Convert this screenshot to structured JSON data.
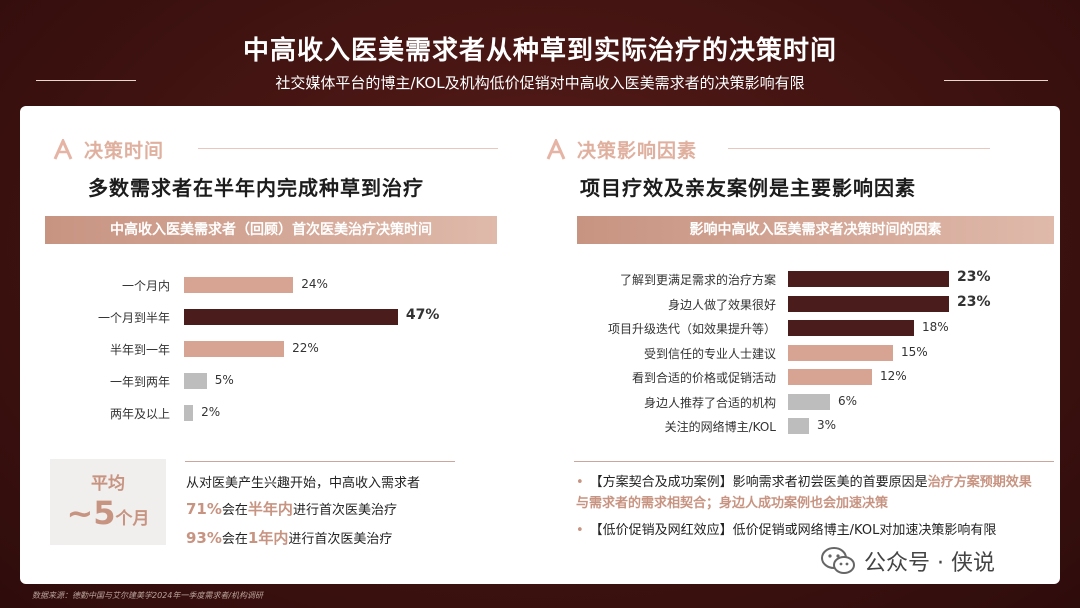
{
  "header": {
    "title": "中高收入医美需求者从种草到实际治疗的决策时间",
    "subtitle": "社交媒体平台的博主/KOL及机构低价促销对中高收入医美需求者的决策影响有限"
  },
  "left": {
    "section_label": "决策时间",
    "headline": "多数需求者在半年内完成种草到治疗",
    "band": "中高收入医美需求者（回顾）首次医美治疗决策时间",
    "average": {
      "line1": "平均",
      "big": "~5",
      "unit": "个月"
    },
    "notes": {
      "line1": "从对医美产生兴趣开始，中高收入需求者",
      "line2_pct": "71%",
      "line2_a": "会在",
      "line2_hl": "半年内",
      "line2_b": "进行首次医美治疗",
      "line3_pct": "93%",
      "line3_a": "会在",
      "line3_hl": "1年内",
      "line3_b": "进行首次医美治疗"
    }
  },
  "right": {
    "section_label": "决策影响因素",
    "headline": "项目疗效及亲友案例是主要影响因素",
    "band": "影响中高收入医美需求者决策时间的因素",
    "bullets": {
      "b1_a": "【方案契合及成功案例】影响需求者初尝医美的首要原因是",
      "b1_hl1": "治疗方案预期效果与需求者的需求相契合；身边人成功案例也会加速决策",
      "b2": "【低价促销及网红效应】低价促销或网络博主/KOL对加速决策影响有限"
    }
  },
  "chart_data": [
    {
      "type": "bar",
      "orientation": "horizontal",
      "categories": [
        "一个月内",
        "一个月到半年",
        "半年到一年",
        "一年到两年",
        "两年及以上"
      ],
      "values": [
        24,
        47,
        22,
        5,
        2
      ],
      "value_labels": [
        "24%",
        "47%",
        "22%",
        "5%",
        "2%"
      ],
      "colors": [
        "#d7a392",
        "#4a1c1c",
        "#d7a392",
        "#bdbdbd",
        "#bdbdbd"
      ],
      "unit": "%"
    },
    {
      "type": "bar",
      "orientation": "horizontal",
      "categories": [
        "了解到更满足需求的治疗方案",
        "身边人做了效果很好",
        "项目升级迭代（如效果提升等）",
        "受到信任的专业人士建议",
        "看到合适的价格或促销活动",
        "身边人推荐了合适的机构",
        "关注的网络博主/KOL"
      ],
      "values": [
        23,
        23,
        18,
        15,
        12,
        6,
        3
      ],
      "value_labels": [
        "23%",
        "23%",
        "18%",
        "15%",
        "12%",
        "6%",
        "3%"
      ],
      "colors": [
        "#4a1c1c",
        "#4a1c1c",
        "#4a1c1c",
        "#d7a392",
        "#d7a392",
        "#bdbdbd",
        "#bdbdbd"
      ],
      "unit": "%"
    }
  ],
  "footer": {
    "source": "数据来源：德勤中国与艾尔建美学2024年一季度需求者/机构调研",
    "watermark": "公众号 · 侠说"
  }
}
